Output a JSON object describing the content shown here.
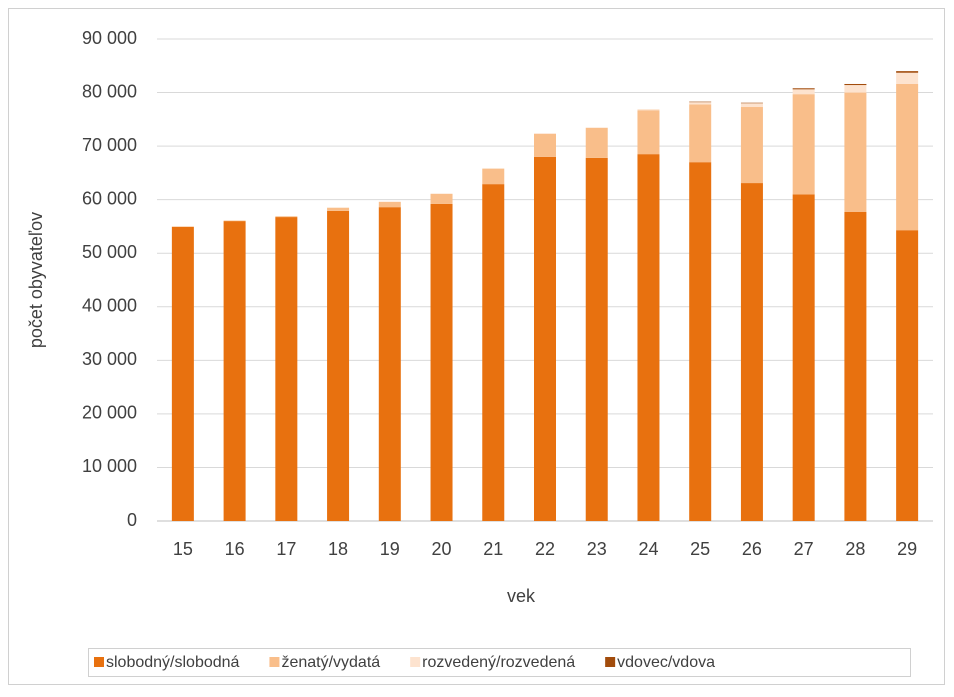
{
  "chart_data": {
    "type": "stacked-bar",
    "categories": [
      "15",
      "16",
      "17",
      "18",
      "19",
      "20",
      "21",
      "22",
      "23",
      "24",
      "25",
      "26",
      "27",
      "28",
      "29"
    ],
    "series": [
      {
        "name": "slobodný/slobodná",
        "color": "#e8710f",
        "values": [
          54900,
          56000,
          56750,
          57900,
          58600,
          59200,
          62900,
          68000,
          67800,
          68500,
          67000,
          63100,
          61000,
          57700,
          54300
        ]
      },
      {
        "name": "ženatý/vydatá",
        "color": "#f9be8a",
        "values": [
          100,
          100,
          150,
          600,
          1000,
          1900,
          2900,
          4300,
          5600,
          8200,
          10800,
          14200,
          18700,
          22300,
          27300
        ]
      },
      {
        "name": "rozvedený/rozvedená",
        "color": "#fde3cf",
        "values": [
          0,
          0,
          0,
          0,
          0,
          0,
          0,
          100,
          100,
          200,
          400,
          700,
          900,
          1400,
          2100
        ]
      },
      {
        "name": "vdovec/vdova",
        "color": "#a24c0c",
        "values": [
          0,
          0,
          0,
          0,
          0,
          0,
          0,
          0,
          0,
          0,
          100,
          100,
          200,
          200,
          300
        ]
      }
    ],
    "xlabel": "vek",
    "ylabel": "počet obyvateľov",
    "ylim": [
      0,
      90000
    ],
    "yticks": [
      0,
      {
        "value": 10000,
        "label": "10 000"
      },
      {
        "value": 20000,
        "label": "20 000"
      },
      {
        "value": 30000,
        "label": "30 000"
      },
      {
        "value": 40000,
        "label": "40 000"
      },
      {
        "value": 50000,
        "label": "50 000"
      },
      {
        "value": 60000,
        "label": "60 000"
      },
      {
        "value": 70000,
        "label": "70 000"
      },
      {
        "value": 80000,
        "label": "80 000"
      },
      {
        "value": 90000,
        "label": "90 000"
      }
    ],
    "grid": true,
    "legend": "bottom"
  }
}
